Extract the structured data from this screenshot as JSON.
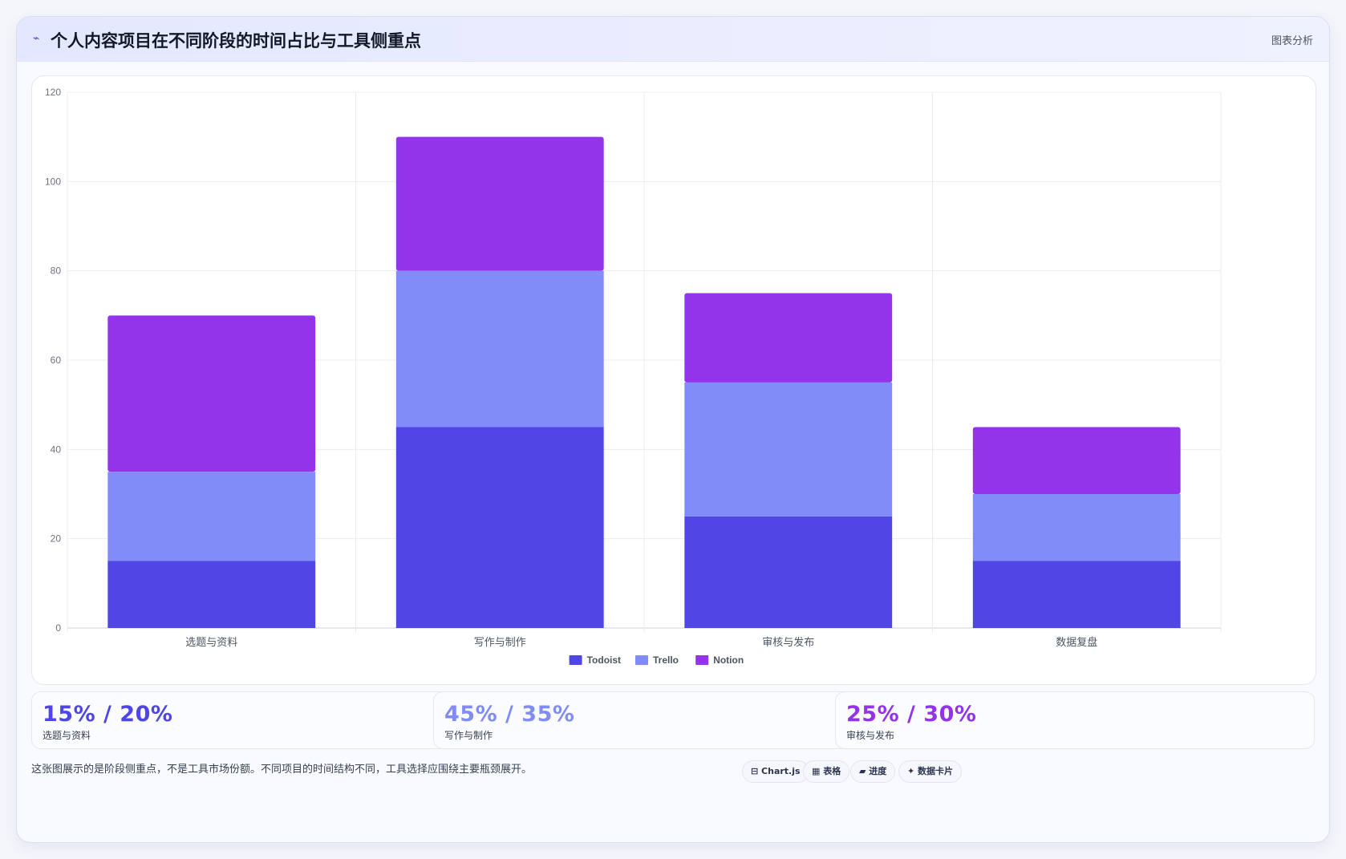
{
  "header": {
    "icon": "trend-icon",
    "title": "个人内容项目在不同阶段的时间占比与工具侧重点",
    "badge": "图表分析"
  },
  "chart_data": {
    "type": "bar",
    "stacked": true,
    "categories": [
      "选题与资料",
      "写作与制作",
      "审核与发布",
      "数据复盘"
    ],
    "series": [
      {
        "name": "Todoist",
        "color": "#4f46e5",
        "values": [
          15,
          45,
          25,
          15
        ]
      },
      {
        "name": "Trello",
        "color": "#818cf8",
        "values": [
          20,
          35,
          30,
          15
        ]
      },
      {
        "name": "Notion",
        "color": "#9333ea",
        "values": [
          35,
          30,
          20,
          15
        ]
      }
    ],
    "ylim": [
      0,
      120
    ],
    "yticks": [
      0,
      20,
      40,
      60,
      80,
      100,
      120
    ],
    "grid": true,
    "legend": "bottom-center",
    "title": "",
    "xlabel": "",
    "ylabel": ""
  },
  "kpis": [
    {
      "value": "15% / 20%",
      "label": "选题与资料",
      "color": "#4f46e5"
    },
    {
      "value": "45% / 35%",
      "label": "写作与制作",
      "color": "#818cf8"
    },
    {
      "value": "25% / 30%",
      "label": "审核与发布",
      "color": "#9333ea"
    }
  ],
  "footer": {
    "note": "这张图展示的是阶段侧重点，不是工具市场份额。不同项目的时间结构不同，工具选择应围绕主要瓶颈展开。",
    "chips": [
      "⊟ Chart.js",
      "▦ 表格",
      "▰ 进度",
      "✦ 数据卡片"
    ]
  }
}
